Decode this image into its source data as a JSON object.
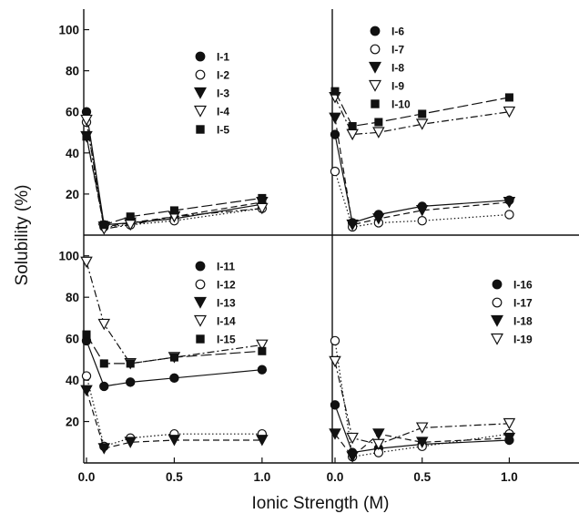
{
  "chart_data": {
    "type": "line",
    "xlabel": "Ionic Strength (M)",
    "ylabel": "Solubility (%)",
    "xlim": [
      0,
      1.4
    ],
    "ylim": [
      0,
      110
    ],
    "x_tick_labels": [
      "0.0",
      "0.5",
      "1.0"
    ],
    "x_tick_values": [
      0,
      0.5,
      1.0
    ],
    "y_tick_labels_top": [
      "20",
      "40",
      "60",
      "80",
      "100"
    ],
    "y_tick_labels_bottom": [
      "20",
      "40",
      "60",
      "80",
      "100"
    ],
    "grid": false,
    "colors": {
      "line": "#111111",
      "axis": "#111111",
      "background": "#ffffff"
    },
    "panels": [
      {
        "position": "top-left",
        "legend_placement": "top-center",
        "series": [
          {
            "name": "I-1",
            "marker": "filled-circle",
            "dash": "solid",
            "x": [
              0,
              0.1,
              0.25,
              0.5,
              1.0
            ],
            "y": [
              60,
              5,
              6,
              8,
              15
            ]
          },
          {
            "name": "I-2",
            "marker": "open-circle",
            "dash": "dotted",
            "x": [
              0,
              0.1,
              0.25,
              0.5,
              1.0
            ],
            "y": [
              55,
              4,
              5,
              7,
              13
            ]
          },
          {
            "name": "I-3",
            "marker": "filled-triangle-down",
            "dash": "dashed",
            "x": [
              0,
              0.1,
              0.25,
              0.5,
              1.0
            ],
            "y": [
              48,
              4,
              6,
              9,
              16
            ]
          },
          {
            "name": "I-4",
            "marker": "open-triangle-down",
            "dash": "dash-dot",
            "x": [
              0,
              0.1,
              0.25,
              0.5,
              1.0
            ],
            "y": [
              56,
              3,
              5,
              9,
              13
            ]
          },
          {
            "name": "I-5",
            "marker": "filled-square",
            "dash": "long-dash",
            "x": [
              0,
              0.1,
              0.25,
              0.5,
              1.0
            ],
            "y": [
              48,
              5,
              9,
              12,
              18
            ]
          }
        ]
      },
      {
        "position": "top-right",
        "legend_placement": "top-left",
        "series": [
          {
            "name": "I-6",
            "marker": "filled-circle",
            "dash": "solid",
            "x": [
              0,
              0.1,
              0.25,
              0.5,
              1.0
            ],
            "y": [
              49,
              6,
              10,
              14,
              17
            ]
          },
          {
            "name": "I-7",
            "marker": "open-circle",
            "dash": "dotted",
            "x": [
              0,
              0.1,
              0.25,
              0.5,
              1.0
            ],
            "y": [
              31,
              4,
              6,
              7,
              10
            ]
          },
          {
            "name": "I-8",
            "marker": "filled-triangle-down",
            "dash": "dashed",
            "x": [
              0,
              0.1,
              0.25,
              0.5,
              1.0
            ],
            "y": [
              57,
              5,
              8,
              12,
              16
            ]
          },
          {
            "name": "I-9",
            "marker": "open-triangle-down",
            "dash": "dash-dot",
            "x": [
              0,
              0.1,
              0.25,
              0.5,
              1.0
            ],
            "y": [
              67,
              49,
              50,
              54,
              60
            ]
          },
          {
            "name": "I-10",
            "marker": "filled-square",
            "dash": "long-dash",
            "x": [
              0,
              0.1,
              0.25,
              0.5,
              1.0
            ],
            "y": [
              70,
              53,
              55,
              59,
              67
            ]
          }
        ]
      },
      {
        "position": "bottom-left",
        "legend_placement": "top-center",
        "series": [
          {
            "name": "I-11",
            "marker": "filled-circle",
            "dash": "solid",
            "x": [
              0,
              0.1,
              0.25,
              0.5,
              1.0
            ],
            "y": [
              59,
              37,
              39,
              41,
              45
            ]
          },
          {
            "name": "I-12",
            "marker": "open-circle",
            "dash": "dotted",
            "x": [
              0,
              0.1,
              0.25,
              0.5,
              1.0
            ],
            "y": [
              42,
              8,
              12,
              14,
              14
            ]
          },
          {
            "name": "I-13",
            "marker": "filled-triangle-down",
            "dash": "dashed",
            "x": [
              0,
              0.1,
              0.25,
              0.5,
              1.0
            ],
            "y": [
              35,
              7,
              10,
              11,
              11
            ]
          },
          {
            "name": "I-14",
            "marker": "open-triangle-down",
            "dash": "dash-dot",
            "x": [
              0,
              0.1,
              0.25,
              0.5,
              1.0
            ],
            "y": [
              97,
              67,
              48,
              51,
              57
            ]
          },
          {
            "name": "I-15",
            "marker": "filled-square",
            "dash": "long-dash",
            "x": [
              0,
              0.1,
              0.25,
              0.5,
              1.0
            ],
            "y": [
              62,
              48,
              48,
              51,
              54
            ]
          }
        ]
      },
      {
        "position": "bottom-right",
        "legend_placement": "top-center",
        "series": [
          {
            "name": "I-16",
            "marker": "filled-circle",
            "dash": "solid",
            "x": [
              0,
              0.1,
              0.25,
              0.5,
              1.0
            ],
            "y": [
              28,
              5,
              7,
              9,
              11
            ]
          },
          {
            "name": "I-17",
            "marker": "open-circle",
            "dash": "dotted",
            "x": [
              0,
              0.1,
              0.25,
              0.5,
              1.0
            ],
            "y": [
              59,
              3,
              5,
              8,
              14
            ]
          },
          {
            "name": "I-18",
            "marker": "filled-triangle-down",
            "dash": "dashed",
            "x": [
              0,
              0.1,
              0.25,
              0.5,
              1.0
            ],
            "y": [
              14,
              3,
              14,
              10,
              12
            ]
          },
          {
            "name": "I-19",
            "marker": "open-triangle-down",
            "dash": "dash-dot",
            "x": [
              0,
              0.1,
              0.25,
              0.5,
              1.0
            ],
            "y": [
              49,
              12,
              9,
              17,
              19
            ]
          }
        ]
      }
    ]
  }
}
